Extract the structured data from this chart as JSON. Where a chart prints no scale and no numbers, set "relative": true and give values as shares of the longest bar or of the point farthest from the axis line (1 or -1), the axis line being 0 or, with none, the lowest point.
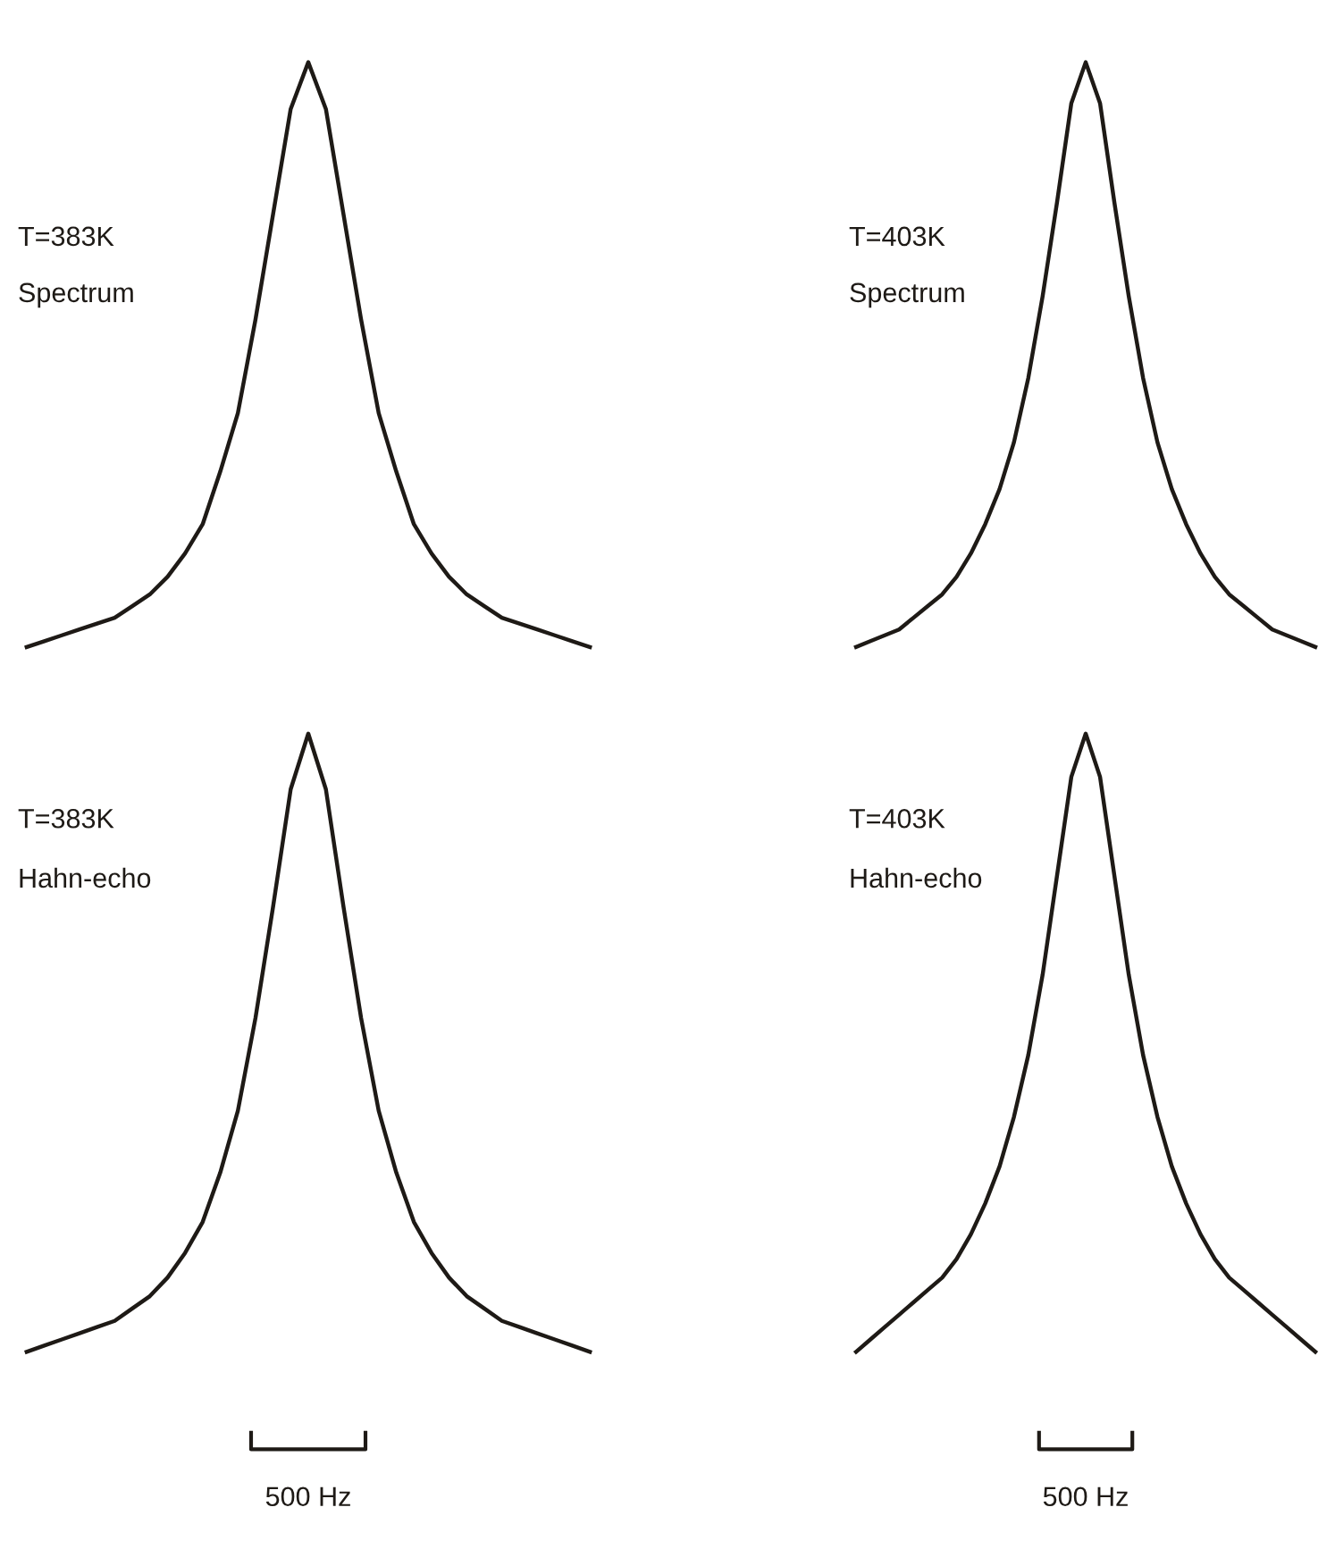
{
  "chart_data": [
    {
      "type": "line",
      "relative": true,
      "categories": [
        null,
        null,
        null,
        null,
        null,
        null,
        null,
        null,
        null,
        null,
        null,
        null,
        null,
        null,
        null,
        null,
        null,
        null,
        null,
        null,
        null,
        null,
        null,
        null,
        null,
        null,
        null,
        null,
        null,
        null,
        null,
        null,
        null
      ],
      "series": [
        {
          "color": "#1e1a16",
          "values": [
            0.0,
            0.01,
            0.02,
            0.03,
            0.04,
            0.05,
            0.07,
            0.09,
            0.12,
            0.16,
            0.21,
            0.3,
            0.4,
            0.56,
            0.74,
            0.92,
            1.0,
            0.92,
            0.74,
            0.56,
            0.4,
            0.3,
            0.21,
            0.16,
            0.12,
            0.09,
            0.07,
            0.05,
            0.04,
            0.03,
            0.02,
            0.01,
            0.0
          ]
        }
      ],
      "annotations": [
        "T=383K",
        "Spectrum"
      ]
    },
    {
      "type": "line",
      "relative": true,
      "categories": [
        null,
        null,
        null,
        null,
        null,
        null,
        null,
        null,
        null,
        null,
        null,
        null,
        null,
        null,
        null,
        null,
        null,
        null,
        null,
        null,
        null,
        null,
        null,
        null,
        null,
        null,
        null,
        null,
        null,
        null,
        null,
        null,
        null
      ],
      "series": [
        {
          "color": "#1e1a16",
          "values": [
            0.0,
            0.01,
            0.02,
            0.03,
            0.05,
            0.07,
            0.09,
            0.12,
            0.16,
            0.21,
            0.27,
            0.35,
            0.46,
            0.6,
            0.76,
            0.93,
            1.0,
            0.93,
            0.76,
            0.6,
            0.46,
            0.35,
            0.27,
            0.21,
            0.16,
            0.12,
            0.09,
            0.07,
            0.05,
            0.03,
            0.02,
            0.01,
            0.0
          ]
        }
      ],
      "annotations": [
        "T=403K",
        "Spectrum"
      ]
    },
    {
      "type": "line",
      "relative": true,
      "categories": [
        null,
        null,
        null,
        null,
        null,
        null,
        null,
        null,
        null,
        null,
        null,
        null,
        null,
        null,
        null,
        null,
        null,
        null,
        null,
        null,
        null,
        null,
        null,
        null,
        null,
        null,
        null,
        null,
        null,
        null,
        null,
        null,
        null
      ],
      "series": [
        {
          "color": "#1e1a16",
          "values": [
            0.0,
            0.01,
            0.02,
            0.03,
            0.04,
            0.05,
            0.07,
            0.09,
            0.12,
            0.16,
            0.21,
            0.29,
            0.39,
            0.54,
            0.72,
            0.91,
            1.0,
            0.91,
            0.72,
            0.54,
            0.39,
            0.29,
            0.21,
            0.16,
            0.12,
            0.09,
            0.07,
            0.05,
            0.04,
            0.03,
            0.02,
            0.01,
            0.0
          ]
        }
      ],
      "annotations": [
        "T=383K",
        "Hahn-echo",
        "500 Hz"
      ]
    },
    {
      "type": "line",
      "relative": true,
      "categories": [
        null,
        null,
        null,
        null,
        null,
        null,
        null,
        null,
        null,
        null,
        null,
        null,
        null,
        null,
        null,
        null,
        null,
        null,
        null,
        null,
        null,
        null,
        null,
        null,
        null,
        null,
        null,
        null,
        null,
        null,
        null,
        null,
        null
      ],
      "series": [
        {
          "color": "#1e1a16",
          "values": [
            0.0,
            0.02,
            0.04,
            0.06,
            0.08,
            0.1,
            0.12,
            0.15,
            0.19,
            0.24,
            0.3,
            0.38,
            0.48,
            0.61,
            0.77,
            0.93,
            1.0,
            0.93,
            0.77,
            0.61,
            0.48,
            0.38,
            0.3,
            0.24,
            0.19,
            0.15,
            0.12,
            0.1,
            0.08,
            0.06,
            0.04,
            0.02,
            0.0
          ]
        }
      ],
      "annotations": [
        "T=403K",
        "Hahn-echo",
        "500 Hz"
      ]
    }
  ]
}
